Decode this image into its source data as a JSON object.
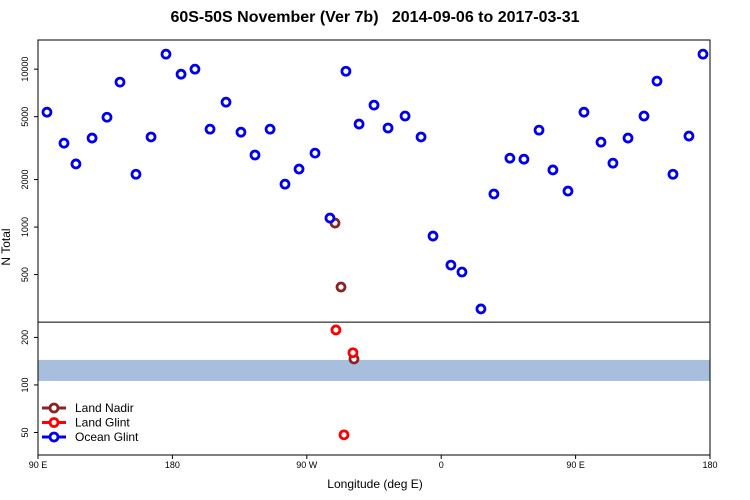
{
  "chart_data": {
    "type": "scatter",
    "title": "60S-50S November (Ver 7b)   2014-09-06 to 2017-03-31",
    "xlabel": "Longitude (deg E)",
    "ylabel": "N Total",
    "xlim": [
      90,
      540
    ],
    "ylim": [
      36,
      15300
    ],
    "log_y": true,
    "xticks": [
      {
        "value": 90,
        "label": "90 E"
      },
      {
        "value": 180,
        "label": "180"
      },
      {
        "value": 270,
        "label": "90 W"
      },
      {
        "value": 360,
        "label": "0"
      },
      {
        "value": 450,
        "label": "90 E"
      },
      {
        "value": 540,
        "label": "180"
      }
    ],
    "yticks": [
      50,
      100,
      200,
      500,
      1000,
      2000,
      5000,
      10000
    ],
    "hline": 250,
    "band": [
      106,
      144
    ],
    "band_color": "#a7bedc",
    "legend": "bottom-left",
    "series": [
      {
        "name": "Land Nadir",
        "color": "#8b2323",
        "x": [
          288.9,
          292.9,
          301.6
        ],
        "values": [
          1060,
          417,
          146
        ]
      },
      {
        "name": "Land Glint",
        "color": "#ff0000",
        "x": [
          289.5,
          300.9,
          294.9
        ],
        "values": [
          223,
          160,
          48.3
        ]
      },
      {
        "name": "Ocean Glint",
        "color": "#0000ee",
        "x": [
          96,
          107.4,
          115.4,
          126.2,
          136.2,
          144.9,
          155.6,
          165.7,
          175.7,
          185.8,
          195.1,
          205.2,
          215.9,
          225.9,
          235.3,
          245.4,
          255.4,
          264.8,
          275.5,
          285.5,
          296.2,
          305,
          315,
          324.4,
          335.8,
          346.5,
          354.5,
          366.5,
          373.9,
          386.6,
          395.3,
          406,
          415.4,
          425.5,
          434.8,
          444.9,
          455.6,
          467,
          475,
          485.1,
          495.8,
          504.5,
          515.2,
          525.9,
          535.3
        ],
        "values": [
          5340,
          3400,
          2510,
          3660,
          4960,
          8280,
          2160,
          3720,
          12450,
          9290,
          10000,
          4170,
          6180,
          3990,
          2860,
          4170,
          1870,
          2330,
          2940,
          1140,
          9700,
          4490,
          5920,
          4240,
          5050,
          3720,
          877,
          574,
          519,
          303,
          1620,
          2730,
          2690,
          4110,
          2300,
          1690,
          5340,
          3450,
          2540,
          3660,
          5050,
          8400,
          2160,
          3770,
          12450
        ]
      }
    ]
  }
}
